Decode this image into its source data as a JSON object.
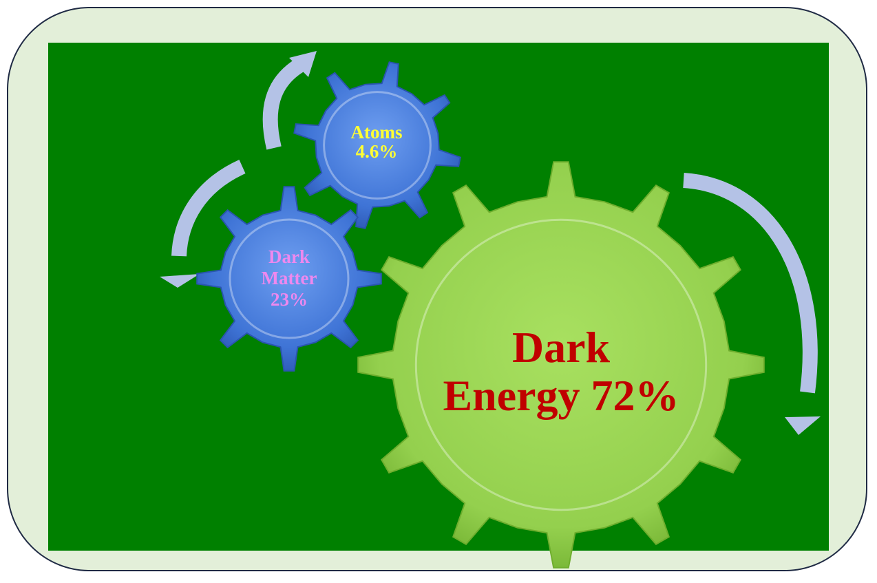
{
  "gears": {
    "atoms": {
      "line1": "Atoms",
      "line2": "4.6%"
    },
    "dark_matter": {
      "line1": "Dark",
      "line2": "Matter",
      "line3": "23%"
    },
    "dark_energy": {
      "line1": "Dark",
      "line2": "Energy 72%"
    }
  },
  "colors": {
    "background_panel": "#008000",
    "frame_fill": "#e3efd9",
    "frame_border": "#1f2a44",
    "gear_blue": "#4a7fd8",
    "gear_green": "#9ed65a",
    "arrow": "#b4c2e6",
    "atoms_text": "#ffff33",
    "dark_matter_text": "#ee88ee",
    "dark_energy_text": "#c00000"
  }
}
